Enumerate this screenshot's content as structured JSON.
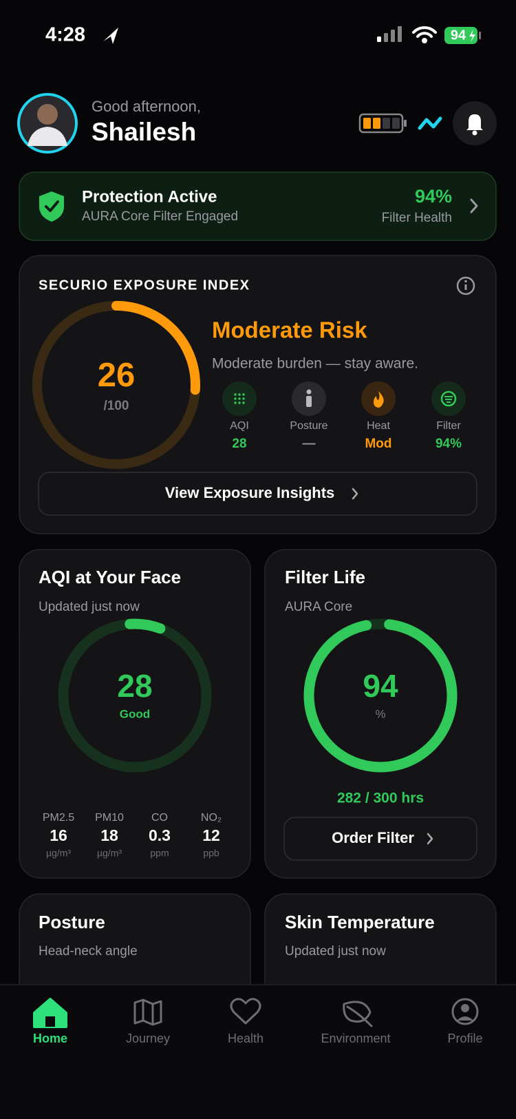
{
  "status_bar": {
    "time": "4:28",
    "battery": "94"
  },
  "header": {
    "greeting": "Good afternoon,",
    "name": "Shailesh"
  },
  "protection": {
    "title": "Protection Active",
    "subtitle": "AURA Core Filter Engaged",
    "value": "94%",
    "label": "Filter Health"
  },
  "exposure": {
    "title": "SECURIO EXPOSURE INDEX",
    "score": 26,
    "score_max": {
      "value": 100,
      "label": "/100"
    },
    "risk": "Moderate Risk",
    "description": "Moderate burden — stay aware.",
    "factors": [
      {
        "label": "AQI",
        "value": "28"
      },
      {
        "label": "Posture",
        "value": "—"
      },
      {
        "label": "Heat",
        "value": "Mod"
      },
      {
        "label": "Filter",
        "value": "94%"
      }
    ],
    "button": "View Exposure Insights"
  },
  "aqi": {
    "title": "AQI at Your Face",
    "subtitle": "Updated just now",
    "value": "28",
    "status": "Good",
    "pollutants": [
      {
        "name": "PM2.5",
        "value": "16",
        "unit": "µg/m³"
      },
      {
        "name": "PM10",
        "value": "18",
        "unit": "µg/m³"
      },
      {
        "name": "CO",
        "value": "0.3",
        "unit": "ppm"
      },
      {
        "name": "NO₂",
        "value": "12",
        "unit": "ppb"
      }
    ]
  },
  "filter": {
    "title": "Filter Life",
    "subtitle": "AURA Core",
    "value": "94",
    "unit": "%",
    "hours": "282 / 300 hrs",
    "button": "Order Filter"
  },
  "posture": {
    "title": "Posture",
    "subtitle": "Head-neck angle"
  },
  "skin": {
    "title": "Skin Temperature",
    "subtitle": "Updated just now"
  },
  "nav": [
    {
      "label": "Home"
    },
    {
      "label": "Journey"
    },
    {
      "label": "Health"
    },
    {
      "label": "Environment"
    },
    {
      "label": "Profile"
    }
  ]
}
